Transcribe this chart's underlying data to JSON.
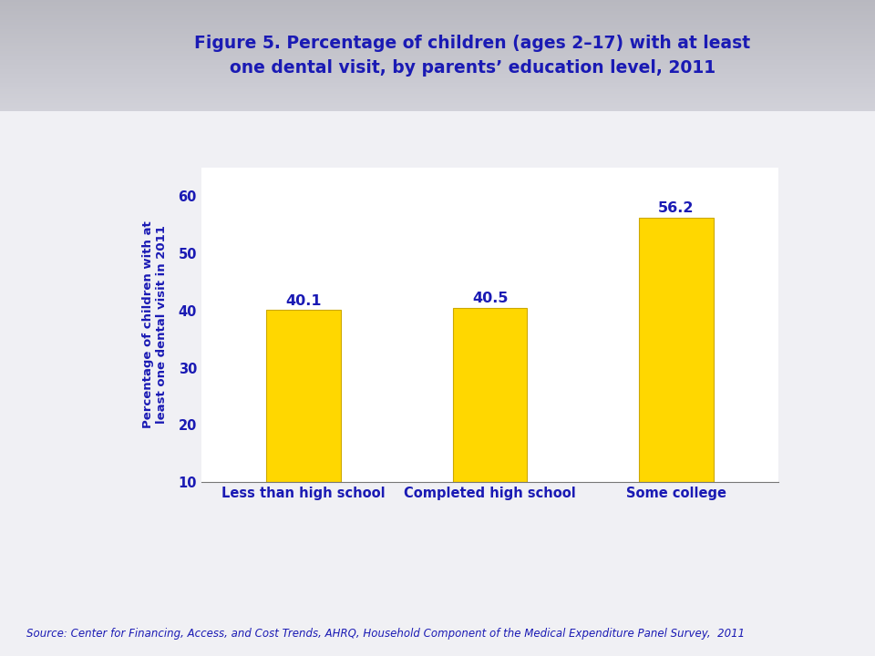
{
  "title_line1": "Figure 5. Percentage of children (ages 2–17) with at least",
  "title_line2": "one dental visit, by parents’ education level, 2011",
  "categories": [
    "Less than high school",
    "Completed high school",
    "Some college"
  ],
  "values": [
    40.1,
    40.5,
    56.2
  ],
  "bar_color": "#FFD700",
  "bar_edgecolor": "#CCA800",
  "ylabel": "Percentage of children with at\nleast one dental visit in 2011",
  "ylim": [
    10,
    65
  ],
  "yticks": [
    10,
    20,
    30,
    40,
    50,
    60
  ],
  "title_color": "#1a1ab4",
  "axis_color": "#1a1ab4",
  "label_color": "#1a1ab4",
  "value_label_color": "#1a1ab4",
  "source_text": "Source: Center for Financing, Access, and Cost Trends, AHRQ, Household Component of the Medical Expenditure Panel Survey,  2011",
  "background_top_color": "#c8c8d4",
  "background_bottom_color": "#f0f0f4",
  "plot_bg_color": "#ffffff",
  "separator_color": "#8888bb",
  "title_fontsize": 13.5,
  "axis_label_fontsize": 9.5,
  "tick_label_fontsize": 10.5,
  "value_label_fontsize": 11.5,
  "source_fontsize": 8.5
}
